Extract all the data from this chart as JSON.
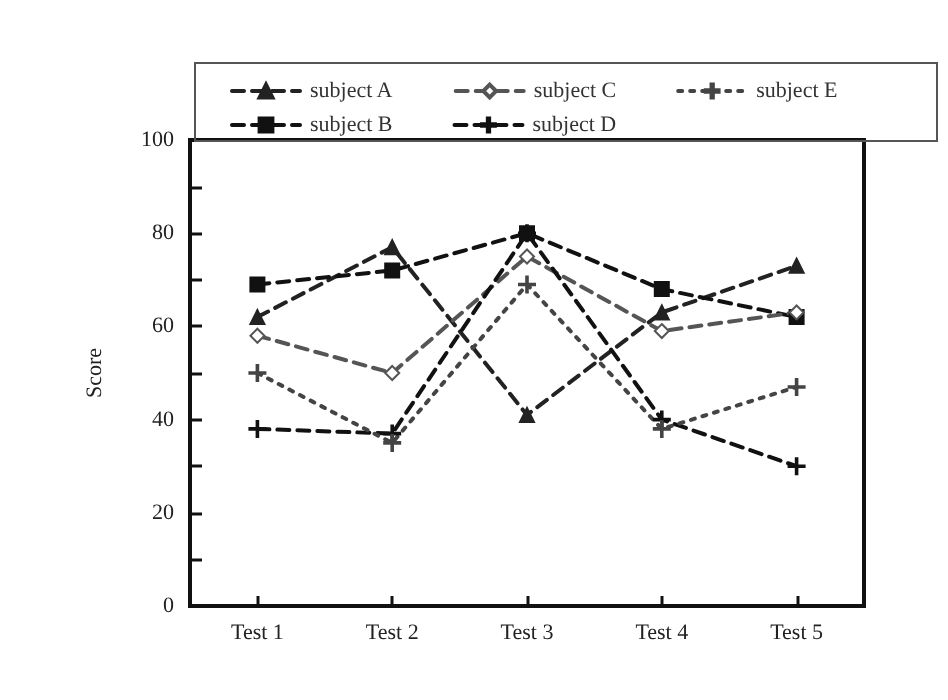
{
  "chart_data": {
    "type": "line",
    "ylabel": "Score",
    "categories": [
      "Test 1",
      "Test 2",
      "Test 3",
      "Test 4",
      "Test 5"
    ],
    "ylim": [
      0,
      100
    ],
    "yticks": [
      0,
      {
        "value": 10,
        "label": null
      },
      20,
      {
        "value": 30,
        "label": null
      },
      40,
      {
        "value": 50,
        "label": null
      },
      60,
      {
        "value": 70,
        "label": null
      },
      80,
      {
        "value": 90,
        "label": null
      },
      100
    ],
    "grid": false,
    "legend": "top",
    "series": [
      {
        "name": "subject A",
        "color": "#222222",
        "marker": "triangle",
        "line_style": "dashed",
        "values": [
          62,
          77,
          41,
          63,
          73
        ]
      },
      {
        "name": "subject B",
        "color": "#111111",
        "marker": "square",
        "line_style": "dashed",
        "values": [
          69,
          72,
          80,
          68,
          62
        ]
      },
      {
        "name": "subject C",
        "color": "#555555",
        "marker": "diamond",
        "line_style": "dashed",
        "values": [
          58,
          50,
          75,
          59,
          63
        ]
      },
      {
        "name": "subject D",
        "color": "#111111",
        "marker": "cross",
        "line_style": "dashed",
        "values": [
          38,
          37,
          80,
          40,
          30
        ]
      },
      {
        "name": "subject E",
        "color": "#444444",
        "marker": "cross",
        "line_style": "dotted",
        "values": [
          50,
          35,
          69,
          38,
          47
        ]
      }
    ]
  }
}
